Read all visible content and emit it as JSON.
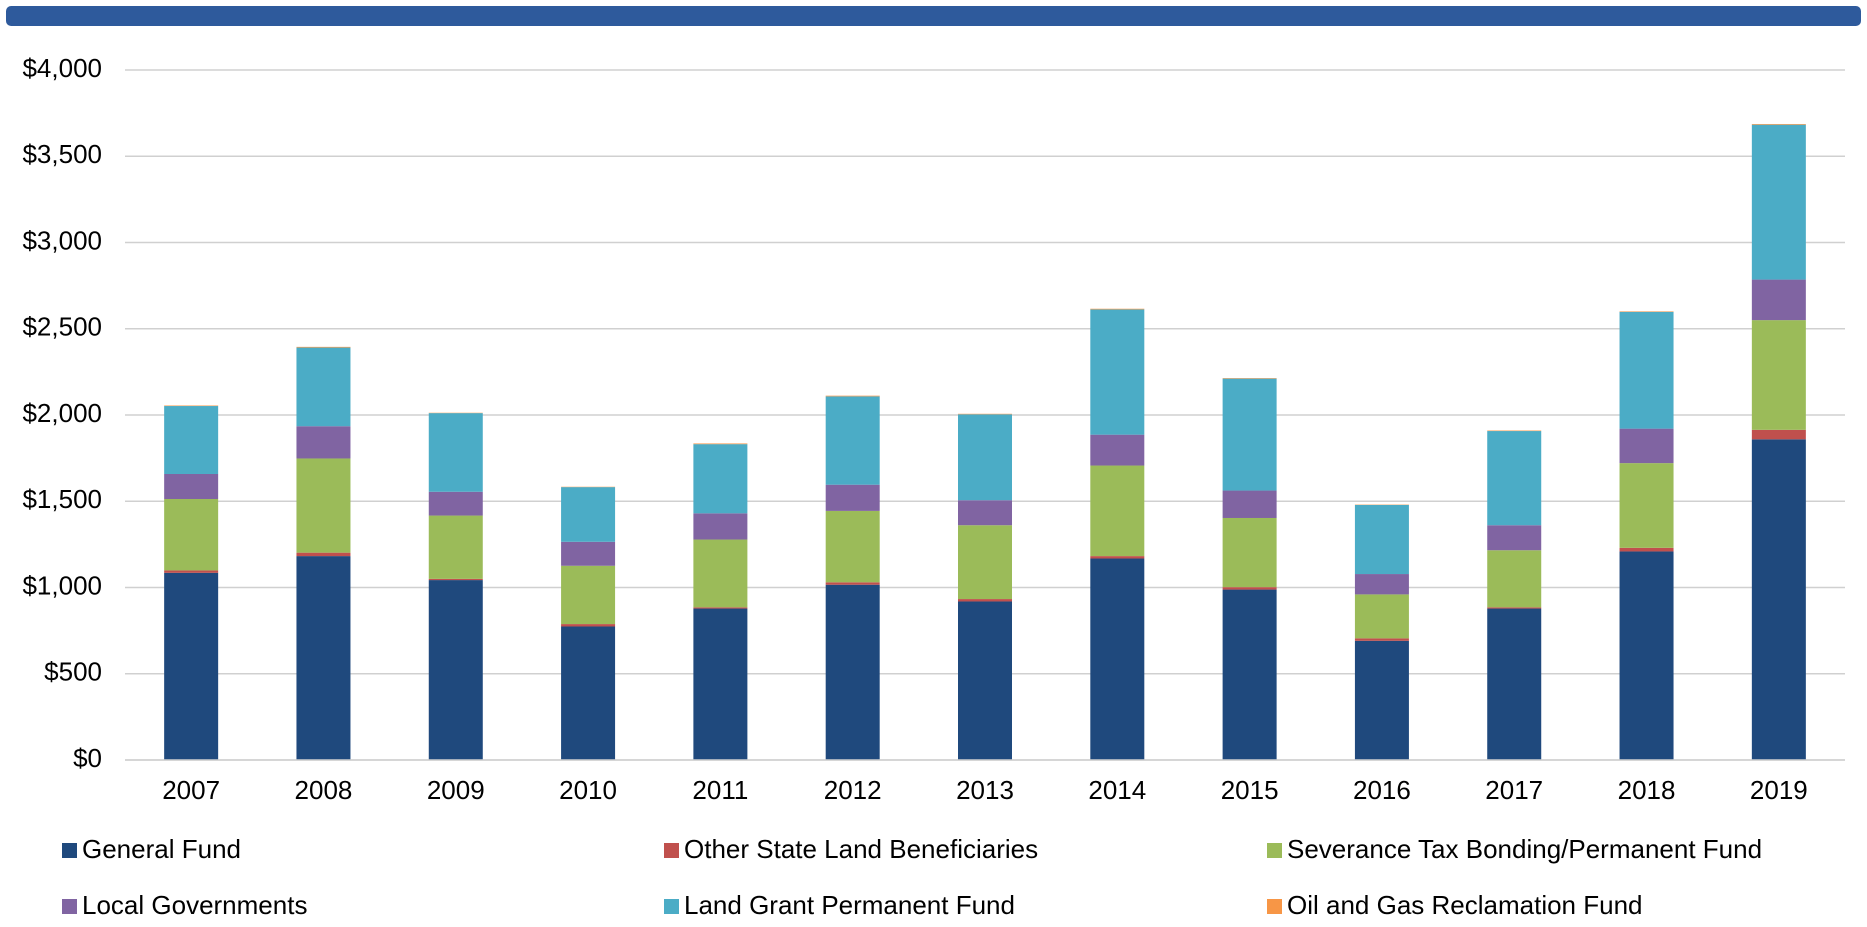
{
  "chart_data": {
    "type": "stacked_bar",
    "categories": [
      "2007",
      "2008",
      "2009",
      "2010",
      "2011",
      "2012",
      "2013",
      "2014",
      "2015",
      "2016",
      "2017",
      "2018",
      "2019"
    ],
    "series": [
      {
        "name": "General Fund",
        "color": "#1f497d",
        "values": [
          1085,
          1182,
          1043,
          774,
          878,
          1016,
          919,
          1168,
          988,
          691,
          878,
          1209,
          1859
        ]
      },
      {
        "name": "Other State Land Beneficiaries",
        "color": "#c0504d",
        "values": [
          14,
          20,
          7,
          14,
          7,
          14,
          14,
          14,
          14,
          14,
          7,
          21,
          55
        ]
      },
      {
        "name": "Severance Tax Bonding/Permanent Fund",
        "color": "#9bbb59",
        "values": [
          414,
          546,
          367,
          338,
          393,
          414,
          428,
          525,
          401,
          255,
          331,
          491,
          636
        ]
      },
      {
        "name": "Local Governments",
        "color": "#8064a2",
        "values": [
          145,
          187,
          138,
          139,
          152,
          152,
          145,
          179,
          159,
          118,
          145,
          200,
          235
        ]
      },
      {
        "name": "Land Grant Permanent Fund",
        "color": "#4bacc6",
        "values": [
          394,
          456,
          456,
          317,
          401,
          512,
          498,
          726,
          649,
          401,
          546,
          677,
          898
        ]
      },
      {
        "name": "Oil and Gas Reclamation Fund",
        "color": "#f79646",
        "values": [
          3,
          4,
          2,
          2,
          4,
          4,
          3,
          4,
          3,
          2,
          3,
          3,
          4
        ]
      }
    ],
    "ylim": [
      0,
      4000
    ],
    "yticks": [
      {
        "value": 0,
        "label": "$0"
      },
      {
        "value": 500,
        "label": "$500"
      },
      {
        "value": 1000,
        "label": "$1,000"
      },
      {
        "value": 1500,
        "label": "$1,500"
      },
      {
        "value": 2000,
        "label": "$2,000"
      },
      {
        "value": 2500,
        "label": "$2,500"
      },
      {
        "value": 3000,
        "label": "$3,000"
      },
      {
        "value": 3500,
        "label": "$3,500"
      },
      {
        "value": 4000,
        "label": "$4,000"
      }
    ],
    "grid": true
  }
}
